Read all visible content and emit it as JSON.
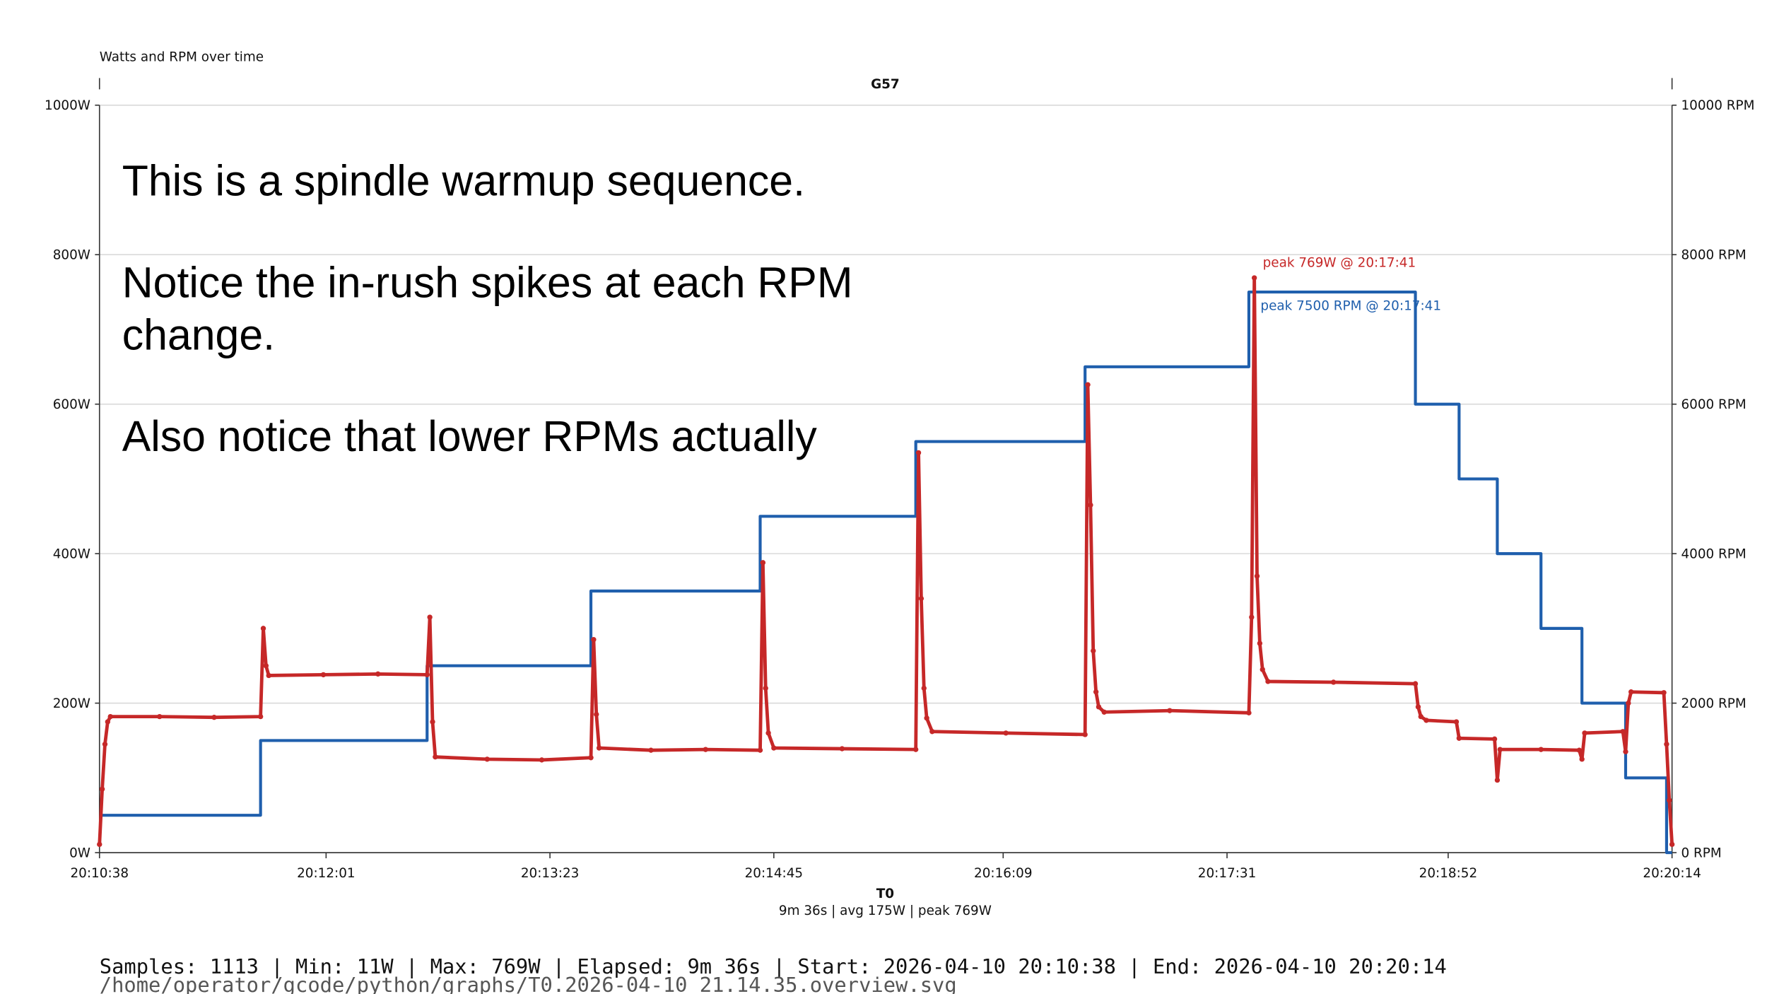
{
  "chart_data": {
    "type": "line",
    "title": "Watts and RPM over time",
    "subtitle": "G57",
    "x_label": "T0",
    "x_sublabel": "9m 36s | avg 175W | peak 769W",
    "notes": [
      "This is a spindle warmup sequence.",
      "Notice the in-rush spikes at each RPM change.",
      "Also notice that lower RPMs actually"
    ],
    "annotations": [
      "peak 769W @ 20:17:41",
      "peak 7500 RPM @ 20:17:41"
    ],
    "xlim": [
      "20:10:38",
      "20:20:14"
    ],
    "xticks": [
      "20:10:38",
      "20:12:01",
      "20:13:23",
      "20:14:45",
      "20:16:09",
      "20:17:31",
      "20:18:52",
      "20:20:14"
    ],
    "ylim": [
      0,
      1000
    ],
    "yticks": [
      {
        "value": 0,
        "label": "0W"
      },
      {
        "value": 200,
        "label": "200W"
      },
      {
        "value": 400,
        "label": "400W"
      },
      {
        "value": 600,
        "label": "600W"
      },
      {
        "value": 800,
        "label": "800W"
      },
      {
        "value": 1000,
        "label": "1000W"
      }
    ],
    "y2lim": [
      0,
      10000
    ],
    "y2ticks": [
      {
        "value": 0,
        "label": "0 RPM"
      },
      {
        "value": 2000,
        "label": "2000 RPM"
      },
      {
        "value": 4000,
        "label": "4000 RPM"
      },
      {
        "value": 6000,
        "label": "6000 RPM"
      },
      {
        "value": 8000,
        "label": "8000 RPM"
      },
      {
        "value": 10000,
        "label": "10000 RPM"
      }
    ],
    "grid": true,
    "series": [
      {
        "name": "RPM",
        "color": "#1f5fad",
        "axis": "y2",
        "markers": false,
        "x": [
          "20:10:38",
          "20:11:37",
          "20:11:37",
          "20:12:38",
          "20:12:38",
          "20:13:38",
          "20:13:38",
          "20:14:40",
          "20:14:40",
          "20:15:37",
          "20:15:37",
          "20:16:39",
          "20:16:39",
          "20:17:39",
          "20:17:39",
          "20:18:40",
          "20:18:40",
          "20:18:56",
          "20:18:56",
          "20:19:10",
          "20:19:10",
          "20:19:26",
          "20:19:26",
          "20:19:41",
          "20:19:41",
          "20:19:57",
          "20:19:57",
          "20:20:12",
          "20:20:12",
          "20:20:14"
        ],
        "values": [
          500,
          500,
          1500,
          1500,
          2500,
          2500,
          3500,
          3500,
          4500,
          4500,
          5500,
          5500,
          6500,
          6500,
          7500,
          7500,
          6000,
          6000,
          5000,
          5000,
          4000,
          4000,
          3000,
          3000,
          2000,
          2000,
          1000,
          1000,
          0,
          0
        ]
      },
      {
        "name": "Watts",
        "color": "#c62828",
        "axis": "y",
        "markers": true,
        "x": [
          "20:10:38",
          "20:10:39",
          "20:10:40",
          "20:10:41",
          "20:10:42",
          "20:11:00",
          "20:11:20",
          "20:11:37",
          "20:11:38",
          "20:11:39",
          "20:11:40",
          "20:12:00",
          "20:12:20",
          "20:12:38",
          "20:12:39",
          "20:12:40",
          "20:12:41",
          "20:13:00",
          "20:13:20",
          "20:13:38",
          "20:13:39",
          "20:13:40",
          "20:13:41",
          "20:14:00",
          "20:14:20",
          "20:14:40",
          "20:14:41",
          "20:14:42",
          "20:14:43",
          "20:14:45",
          "20:15:10",
          "20:15:37",
          "20:15:38",
          "20:15:39",
          "20:15:40",
          "20:15:41",
          "20:15:43",
          "20:16:10",
          "20:16:39",
          "20:16:40",
          "20:16:41",
          "20:16:42",
          "20:16:43",
          "20:16:44",
          "20:16:46",
          "20:17:10",
          "20:17:39",
          "20:17:40",
          "20:17:41",
          "20:17:42",
          "20:17:43",
          "20:17:44",
          "20:17:46",
          "20:18:10",
          "20:18:40",
          "20:18:41",
          "20:18:42",
          "20:18:44",
          "20:18:55",
          "20:18:56",
          "20:19:09",
          "20:19:10",
          "20:19:11",
          "20:19:26",
          "20:19:40",
          "20:19:41",
          "20:19:42",
          "20:19:56",
          "20:19:57",
          "20:19:58",
          "20:19:59",
          "20:20:11",
          "20:20:12",
          "20:20:13",
          "20:20:14"
        ],
        "values": [
          11,
          85,
          145,
          175,
          182,
          182,
          181,
          182,
          300,
          250,
          237,
          238,
          239,
          238,
          315,
          175,
          128,
          125,
          124,
          127,
          285,
          185,
          140,
          137,
          138,
          137,
          388,
          220,
          160,
          140,
          139,
          138,
          535,
          340,
          220,
          180,
          162,
          160,
          158,
          626,
          465,
          270,
          215,
          195,
          188,
          190,
          187,
          315,
          769,
          370,
          280,
          245,
          229,
          228,
          226,
          195,
          182,
          177,
          175,
          153,
          152,
          97,
          138,
          138,
          137,
          125,
          160,
          162,
          135,
          200,
          215,
          214,
          145,
          70,
          11
        ]
      }
    ]
  },
  "footer": {
    "stats": "Samples: 1113 | Min: 11W | Max: 769W | Elapsed: 9m 36s | Start: 2026-04-10 20:10:38 | End: 2026-04-10 20:20:14",
    "path": "/home/operator/gcode/python/graphs/T0.2026-04-10_21.14.35.overview.svg"
  }
}
